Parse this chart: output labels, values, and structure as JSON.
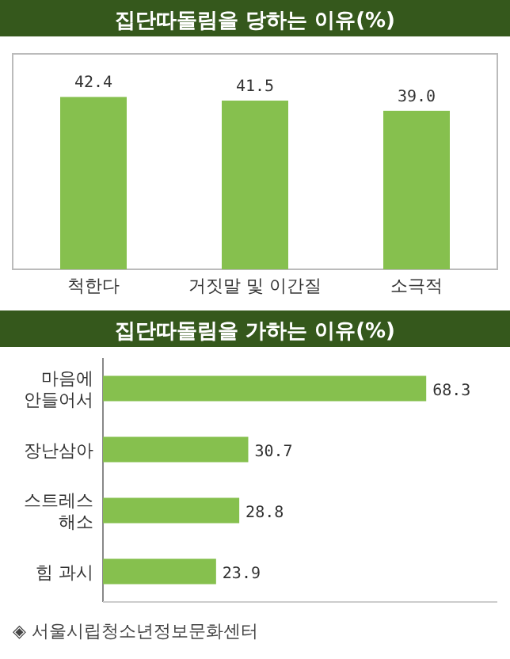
{
  "chart_data": [
    {
      "type": "bar",
      "title": "집단따돌림을 당하는 이유(%)",
      "categories": [
        "척한다",
        "거짓말 및 이간질",
        "소극적"
      ],
      "values": [
        42.4,
        41.5,
        39.0
      ],
      "value_labels": [
        "42.4",
        "41.5",
        "39.0"
      ],
      "color": "#86c04e"
    },
    {
      "type": "bar",
      "orientation": "horizontal",
      "title": "집단따돌림을 가하는 이유(%)",
      "categories": [
        "마음에\n안들어서",
        "장난삼아",
        "스트레스\n해소",
        "힘 과시"
      ],
      "values": [
        68.3,
        30.7,
        28.8,
        23.9
      ],
      "value_labels": [
        "68.3",
        "30.7",
        "28.8",
        "23.9"
      ],
      "color": "#86c04e",
      "annotations": [
        "◈ 서울시립청소년정보문화센터"
      ]
    }
  ]
}
